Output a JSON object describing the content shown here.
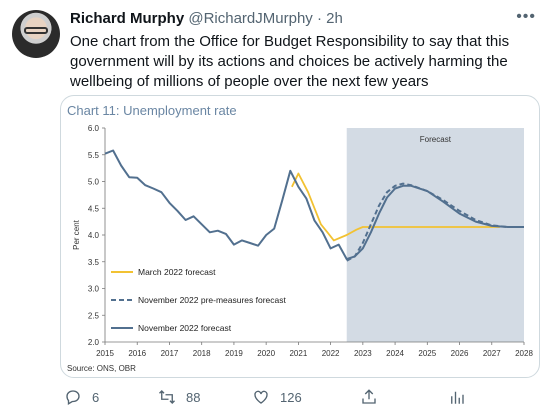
{
  "tweet": {
    "author_name": "Richard Murphy",
    "author_handle": "@RichardJMurphy",
    "separator": "·",
    "time": "2h",
    "more_icon": "more-horizontal-icon",
    "text": "One chart from the Office for Budget Responsibility to say that this government will by its actions and choices be actively harming the wellbeing of millions of people over the next few years"
  },
  "actions": {
    "reply_count": "6",
    "retweet_count": "88",
    "like_count": "126",
    "reply_icon": "reply-icon",
    "retweet_icon": "retweet-icon",
    "like_icon": "heart-icon",
    "share_icon": "share-icon",
    "analytics_icon": "analytics-icon"
  },
  "chart_data": {
    "type": "line",
    "title": "Chart 11: Unemployment rate",
    "ylabel": "Per cent",
    "xlabel": "",
    "source": "Source: ONS, OBR",
    "forecast_label": "Forecast",
    "forecast_start": 2022.5,
    "xlim": [
      2015,
      2028
    ],
    "ylim": [
      2.0,
      6.0
    ],
    "x_ticks": [
      2015,
      2016,
      2017,
      2018,
      2019,
      2020,
      2021,
      2022,
      2023,
      2024,
      2025,
      2026,
      2027,
      2028
    ],
    "y_ticks": [
      "2.0",
      "2.5",
      "3.0",
      "3.5",
      "4.0",
      "4.5",
      "5.0",
      "5.5",
      "6.0"
    ],
    "legend_position": "bottom-left",
    "colors": {
      "march": "#f2c232",
      "november": "#52708f",
      "forecast_shade": "#d3dbe4",
      "title": "#6a86a3"
    },
    "series": [
      {
        "name": "March 2022 forecast",
        "style": "solid",
        "color": "#f2c232",
        "points": [
          [
            2020.8,
            4.9
          ],
          [
            2021.0,
            5.15
          ],
          [
            2021.3,
            4.8
          ],
          [
            2021.5,
            4.5
          ],
          [
            2021.7,
            4.2
          ],
          [
            2021.9,
            4.05
          ],
          [
            2022.1,
            3.9
          ],
          [
            2022.5,
            4.0
          ],
          [
            2022.8,
            4.1
          ],
          [
            2023.0,
            4.15
          ],
          [
            2023.5,
            4.15
          ],
          [
            2024.0,
            4.15
          ],
          [
            2025.0,
            4.15
          ],
          [
            2026.0,
            4.15
          ],
          [
            2027.0,
            4.15
          ],
          [
            2027.25,
            4.15
          ]
        ]
      },
      {
        "name": "November 2022 pre-measures forecast",
        "style": "dashed",
        "color": "#52708f",
        "points": [
          [
            2022.5,
            3.52
          ],
          [
            2022.75,
            3.6
          ],
          [
            2023.0,
            3.85
          ],
          [
            2023.25,
            4.2
          ],
          [
            2023.5,
            4.55
          ],
          [
            2023.75,
            4.8
          ],
          [
            2024.0,
            4.92
          ],
          [
            2024.25,
            4.96
          ],
          [
            2024.5,
            4.93
          ],
          [
            2025.0,
            4.82
          ],
          [
            2025.5,
            4.65
          ],
          [
            2026.0,
            4.45
          ],
          [
            2026.5,
            4.28
          ],
          [
            2027.0,
            4.18
          ],
          [
            2027.5,
            4.15
          ],
          [
            2028.0,
            4.15
          ]
        ]
      },
      {
        "name": "November 2022 forecast",
        "style": "solid",
        "color": "#52708f",
        "points": [
          [
            2015.0,
            5.52
          ],
          [
            2015.25,
            5.58
          ],
          [
            2015.5,
            5.3
          ],
          [
            2015.75,
            5.08
          ],
          [
            2016.0,
            5.07
          ],
          [
            2016.25,
            4.93
          ],
          [
            2016.5,
            4.87
          ],
          [
            2016.75,
            4.8
          ],
          [
            2017.0,
            4.6
          ],
          [
            2017.25,
            4.45
          ],
          [
            2017.5,
            4.28
          ],
          [
            2017.75,
            4.35
          ],
          [
            2018.0,
            4.2
          ],
          [
            2018.25,
            4.05
          ],
          [
            2018.5,
            4.08
          ],
          [
            2018.75,
            4.02
          ],
          [
            2019.0,
            3.82
          ],
          [
            2019.25,
            3.9
          ],
          [
            2019.5,
            3.85
          ],
          [
            2019.75,
            3.8
          ],
          [
            2020.0,
            4.0
          ],
          [
            2020.25,
            4.12
          ],
          [
            2020.5,
            4.65
          ],
          [
            2020.75,
            5.2
          ],
          [
            2021.0,
            4.9
          ],
          [
            2021.25,
            4.68
          ],
          [
            2021.5,
            4.27
          ],
          [
            2021.75,
            4.05
          ],
          [
            2022.0,
            3.75
          ],
          [
            2022.25,
            3.82
          ],
          [
            2022.5,
            3.55
          ],
          [
            2022.75,
            3.6
          ],
          [
            2023.0,
            3.75
          ],
          [
            2023.25,
            4.05
          ],
          [
            2023.5,
            4.4
          ],
          [
            2023.75,
            4.7
          ],
          [
            2024.0,
            4.87
          ],
          [
            2024.25,
            4.92
          ],
          [
            2024.5,
            4.92
          ],
          [
            2025.0,
            4.82
          ],
          [
            2025.5,
            4.62
          ],
          [
            2026.0,
            4.4
          ],
          [
            2026.5,
            4.25
          ],
          [
            2027.0,
            4.17
          ],
          [
            2027.5,
            4.15
          ],
          [
            2028.0,
            4.15
          ]
        ]
      }
    ]
  }
}
